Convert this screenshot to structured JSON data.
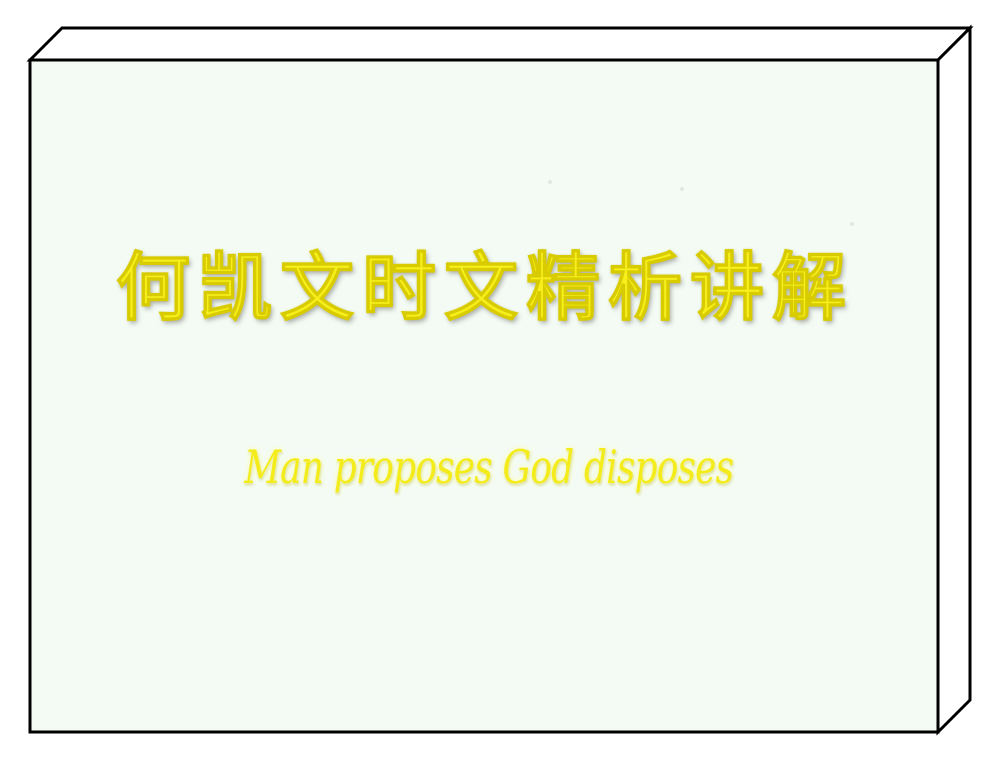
{
  "slide": {
    "title": "何凯文时文精析讲解",
    "subtitle": "Man proposes God disposes"
  },
  "colors": {
    "box_face": "#f4fbf4",
    "box_outline": "#000000",
    "text_yellow": "#f6ef1c"
  }
}
